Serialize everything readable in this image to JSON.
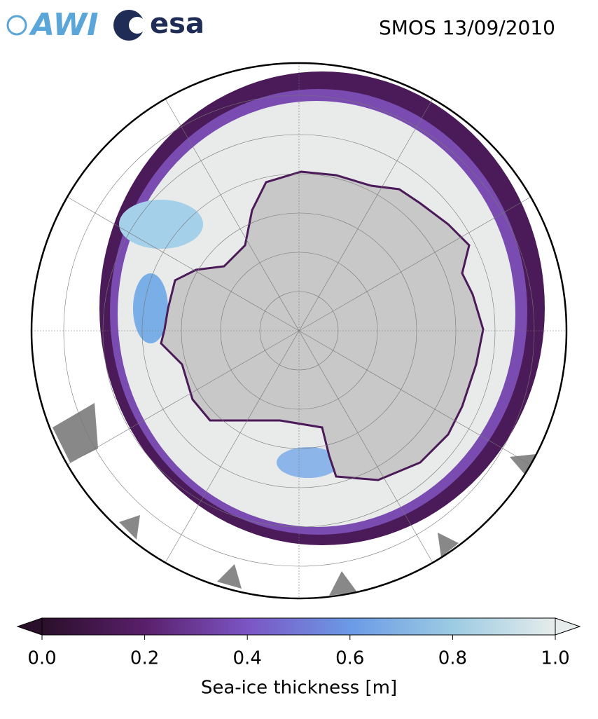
{
  "header": {
    "title": "SMOS 13/09/2010",
    "logos": [
      "AWI",
      "esa"
    ]
  },
  "colorbar": {
    "label": "Sea-ice thickness [m]",
    "lim": [
      0,
      1
    ],
    "ticks": [
      {
        "value": 0,
        "label": "0.0"
      },
      0.2,
      0.4,
      0.6,
      0.8,
      {
        "value": 1,
        "label": "1.0"
      }
    ],
    "colors": [
      "#2a0f2a",
      "#5a1f6b",
      "#7b55c4",
      "#6b9ae6",
      "#9ccbe3",
      "#e6eceb"
    ],
    "extend": "both"
  }
}
